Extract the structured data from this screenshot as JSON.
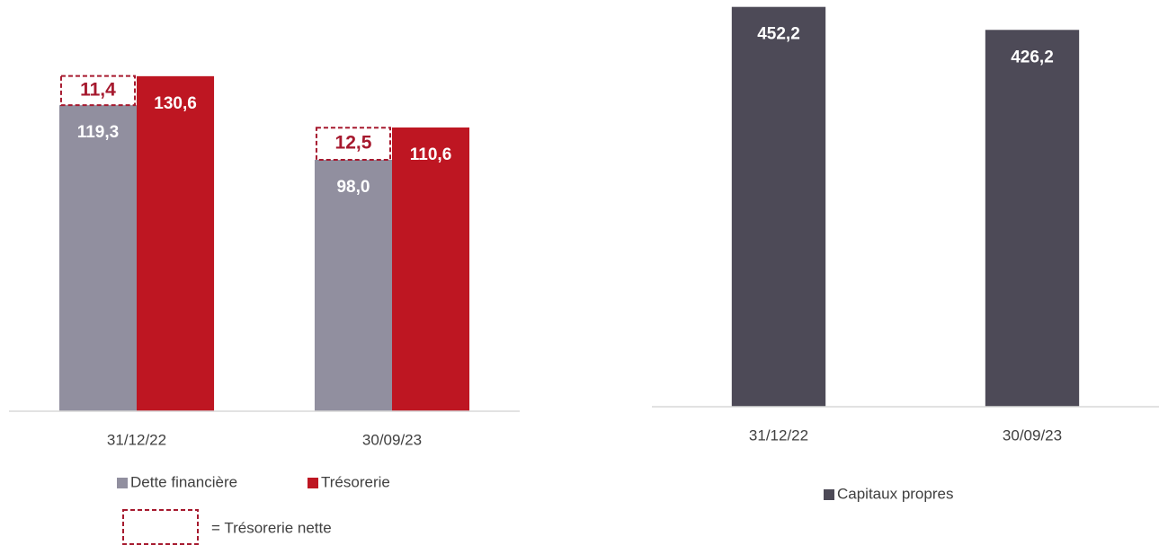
{
  "chart_data": [
    {
      "type": "bar",
      "categories": [
        "31/12/22",
        "30/09/23"
      ],
      "series": [
        {
          "name": "Dette financière",
          "color": "#918f9f",
          "values": [
            119.3,
            98.0
          ],
          "value_labels": [
            "119,3",
            "98,0"
          ]
        },
        {
          "name": "Trésorerie",
          "color": "#be1622",
          "values": [
            130.6,
            110.6
          ],
          "value_labels": [
            "130,6",
            "110,6"
          ]
        }
      ],
      "net_cash": {
        "name": "= Trésorerie nette",
        "color": "#a6192e",
        "values": [
          11.4,
          12.5
        ],
        "value_labels": [
          "11,4",
          "12,5"
        ]
      },
      "ylim": [
        0,
        140
      ]
    },
    {
      "type": "bar",
      "categories": [
        "31/12/22",
        "30/09/23"
      ],
      "series": [
        {
          "name": "Capitaux propres",
          "color": "#4d4a57",
          "values": [
            452.2,
            426.2
          ],
          "value_labels": [
            "452,2",
            "426,2"
          ]
        }
      ],
      "ylim": [
        0,
        460
      ]
    }
  ]
}
